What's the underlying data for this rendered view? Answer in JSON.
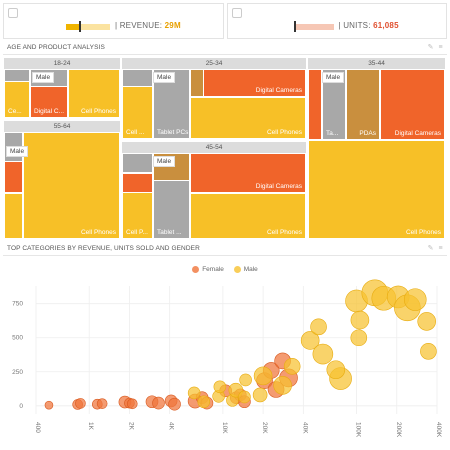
{
  "kpis": [
    {
      "label": "| REVENUE:",
      "value": "29M",
      "value_color": "#e8a000"
    },
    {
      "label": "| UNITS:",
      "value": "61,085",
      "value_color": "#e05030"
    }
  ],
  "treemap_panel": {
    "title": "AGE AND PRODUCT ANALYSIS"
  },
  "treemap": {
    "groups": [
      {
        "name": "18-24",
        "tag": "Male",
        "tiles": [
          "Ce...",
          "Digital C...",
          "Cell Phones"
        ]
      },
      {
        "name": "25-34",
        "tag": "Male",
        "tiles": [
          "Cell ...",
          "Tablet PCs",
          "Digital Cameras",
          "Cell Phones"
        ]
      },
      {
        "name": "35-44",
        "tag": "Male",
        "tiles": [
          "Ta...",
          "PDAs",
          "Digital Cameras",
          "Cell Phones"
        ]
      },
      {
        "name": "55-64",
        "tag": "Male",
        "tiles": [
          "Cell Phones"
        ]
      },
      {
        "name": "45-54",
        "tag": "Male",
        "tiles": [
          "Cell P...",
          "Tablet ...",
          "Digital Cameras",
          "Cell Phones"
        ]
      }
    ]
  },
  "scatter_panel": {
    "title": "TOP CATEGORIES BY REVENUE, UNITS SOLD AND GENDER"
  },
  "colors": {
    "female": "#f0743a",
    "male": "#f7c230",
    "gray": "#a8a8a8",
    "tan": "#c98f3e",
    "orange": "#f0642a",
    "yellow": "#f7c027"
  },
  "chart_data": {
    "type": "scatter",
    "title": "",
    "legend": [
      "Female",
      "Male"
    ],
    "legend_position": "top",
    "x_scale": "log",
    "x_ticks": [
      "400",
      "1K",
      "2K",
      "4K",
      "10K",
      "20K",
      "40K",
      "100K",
      "200K",
      "400K"
    ],
    "y_ticks": [
      "0",
      "250",
      "500",
      "750"
    ],
    "ylim": [
      -60,
      880
    ],
    "series": [
      {
        "name": "Female",
        "points": [
          {
            "x": 500,
            "y": 5,
            "size": 4
          },
          {
            "x": 820,
            "y": 10,
            "size": 5
          },
          {
            "x": 860,
            "y": 18,
            "size": 5
          },
          {
            "x": 1150,
            "y": 12,
            "size": 5
          },
          {
            "x": 1250,
            "y": 16,
            "size": 5
          },
          {
            "x": 1850,
            "y": 28,
            "size": 6
          },
          {
            "x": 2000,
            "y": 20,
            "size": 5
          },
          {
            "x": 2100,
            "y": 15,
            "size": 5
          },
          {
            "x": 2950,
            "y": 30,
            "size": 6
          },
          {
            "x": 3300,
            "y": 20,
            "size": 6
          },
          {
            "x": 4100,
            "y": 36,
            "size": 6
          },
          {
            "x": 4350,
            "y": 12,
            "size": 6
          },
          {
            "x": 6200,
            "y": 35,
            "size": 7
          },
          {
            "x": 7000,
            "y": 60,
            "size": 6
          },
          {
            "x": 7600,
            "y": 20,
            "size": 6
          },
          {
            "x": 10500,
            "y": 110,
            "size": 6
          },
          {
            "x": 12600,
            "y": 60,
            "size": 6
          },
          {
            "x": 13500,
            "y": 80,
            "size": 6
          },
          {
            "x": 14500,
            "y": 30,
            "size": 6
          },
          {
            "x": 20500,
            "y": 185,
            "size": 8
          },
          {
            "x": 23000,
            "y": 260,
            "size": 8
          },
          {
            "x": 25000,
            "y": 120,
            "size": 8
          },
          {
            "x": 28000,
            "y": 330,
            "size": 8
          },
          {
            "x": 31000,
            "y": 205,
            "size": 9
          }
        ]
      },
      {
        "name": "Male",
        "points": [
          {
            "x": 6100,
            "y": 95,
            "size": 6
          },
          {
            "x": 7200,
            "y": 30,
            "size": 6
          },
          {
            "x": 9300,
            "y": 70,
            "size": 6
          },
          {
            "x": 9500,
            "y": 140,
            "size": 6
          },
          {
            "x": 11800,
            "y": 40,
            "size": 6
          },
          {
            "x": 12500,
            "y": 115,
            "size": 7
          },
          {
            "x": 14800,
            "y": 190,
            "size": 6
          },
          {
            "x": 14500,
            "y": 65,
            "size": 6
          },
          {
            "x": 19000,
            "y": 80,
            "size": 7
          },
          {
            "x": 20000,
            "y": 220,
            "size": 9
          },
          {
            "x": 28000,
            "y": 150,
            "size": 9
          },
          {
            "x": 33000,
            "y": 290,
            "size": 8
          },
          {
            "x": 45000,
            "y": 480,
            "size": 9
          },
          {
            "x": 52000,
            "y": 580,
            "size": 8
          },
          {
            "x": 56000,
            "y": 380,
            "size": 10
          },
          {
            "x": 76000,
            "y": 200,
            "size": 11
          },
          {
            "x": 70000,
            "y": 265,
            "size": 9
          },
          {
            "x": 100000,
            "y": 770,
            "size": 11
          },
          {
            "x": 106000,
            "y": 630,
            "size": 9
          },
          {
            "x": 104000,
            "y": 500,
            "size": 8
          },
          {
            "x": 137000,
            "y": 830,
            "size": 13
          },
          {
            "x": 160000,
            "y": 790,
            "size": 12
          },
          {
            "x": 205000,
            "y": 800,
            "size": 11
          },
          {
            "x": 240000,
            "y": 720,
            "size": 13
          },
          {
            "x": 275000,
            "y": 780,
            "size": 11
          },
          {
            "x": 335000,
            "y": 620,
            "size": 9
          },
          {
            "x": 345000,
            "y": 400,
            "size": 8
          }
        ]
      }
    ]
  }
}
